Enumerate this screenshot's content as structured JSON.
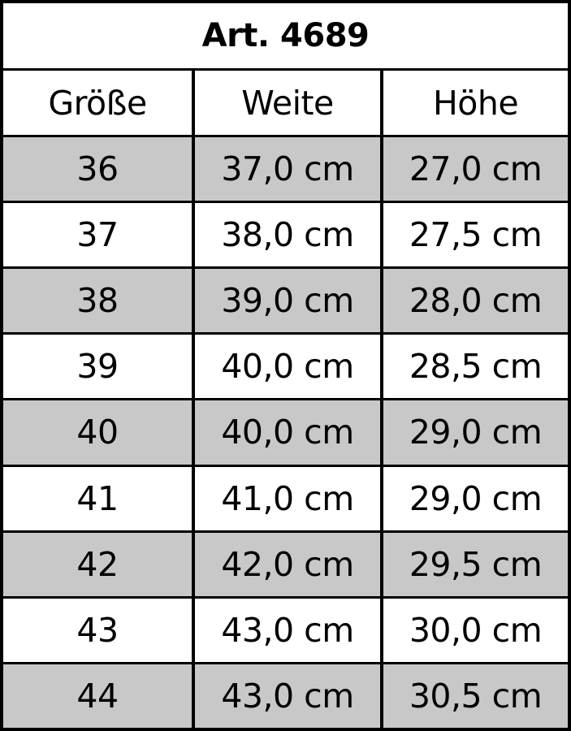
{
  "title": "Art. 4689",
  "headers": [
    "Größe",
    "Weite",
    "Höhe"
  ],
  "rows": [
    [
      "36",
      "37,0 cm",
      "27,0 cm"
    ],
    [
      "37",
      "38,0 cm",
      "27,5 cm"
    ],
    [
      "38",
      "39,0 cm",
      "28,0 cm"
    ],
    [
      "39",
      "40,0 cm",
      "28,5 cm"
    ],
    [
      "40",
      "40,0 cm",
      "29,0 cm"
    ],
    [
      "41",
      "41,0 cm",
      "29,0 cm"
    ],
    [
      "42",
      "42,0 cm",
      "29,5 cm"
    ],
    [
      "43",
      "43,0 cm",
      "30,0 cm"
    ],
    [
      "44",
      "43,0 cm",
      "30,5 cm"
    ]
  ],
  "colors": {
    "shaded_row": "#c8c8c8",
    "border": "#000000"
  }
}
